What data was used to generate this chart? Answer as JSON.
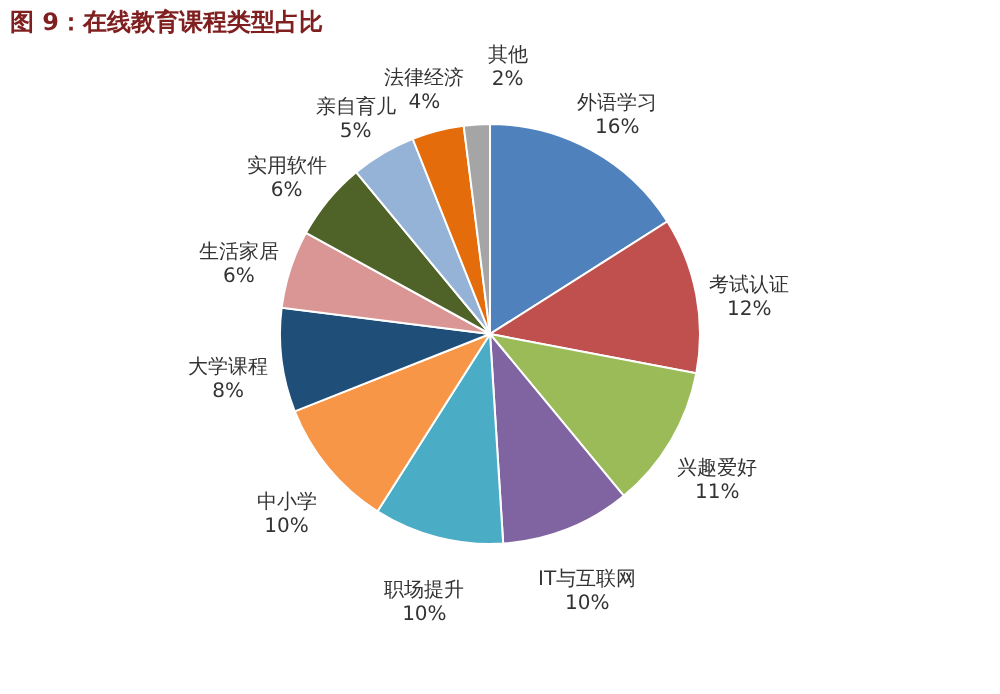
{
  "chart_data": {
    "type": "pie",
    "title": "图 9：在线教育课程类型占比",
    "categories": [
      "外语学习",
      "考试认证",
      "兴趣爱好",
      "IT与互联网",
      "职场提升",
      "中小学",
      "大学课程",
      "生活家居",
      "实用软件",
      "亲自育儿",
      "法律经济",
      "其他"
    ],
    "values": [
      16,
      12,
      11,
      10,
      10,
      10,
      8,
      6,
      6,
      5,
      4,
      2
    ],
    "value_labels": [
      "16%",
      "12%",
      "11%",
      "10%",
      "10%",
      "10%",
      "8%",
      "6%",
      "6%",
      "5%",
      "4%",
      "2%"
    ],
    "colors": [
      "#4f81bd",
      "#c0504d",
      "#9bbb59",
      "#8064a2",
      "#4bacc6",
      "#f79646",
      "#1f4e79",
      "#d99694",
      "#4f6228",
      "#95b3d7",
      "#e46c0a",
      "#a5a5a5"
    ],
    "legend": false
  }
}
